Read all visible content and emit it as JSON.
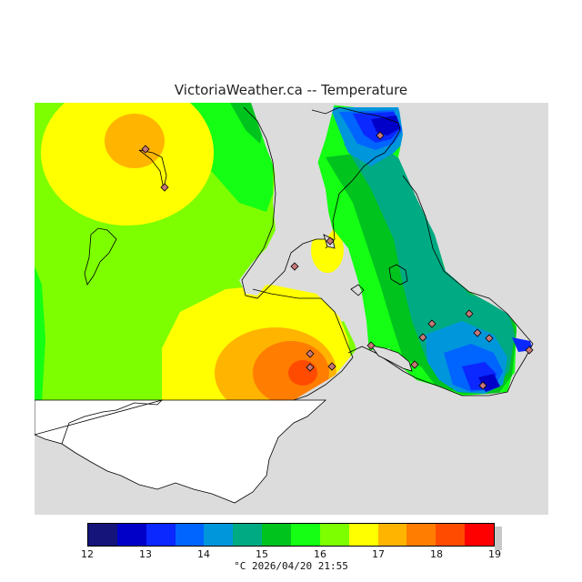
{
  "title": "VictoriaWeather.ca -- Temperature",
  "footer": "°C  2026/04/20 21:55",
  "legend": {
    "ticks": [
      "12",
      "13",
      "14",
      "15",
      "16",
      "17",
      "18",
      "19"
    ],
    "colors": [
      "#14147a",
      "#0000c8",
      "#0a28ff",
      "#0064ff",
      "#0096dc",
      "#00aa82",
      "#00c31e",
      "#14ff14",
      "#7dff00",
      "#ffff00",
      "#ffb400",
      "#ff7d00",
      "#ff4b00",
      "#ff0000"
    ]
  },
  "map": {
    "background": "#dcdcdc",
    "stations_count": 17
  }
}
